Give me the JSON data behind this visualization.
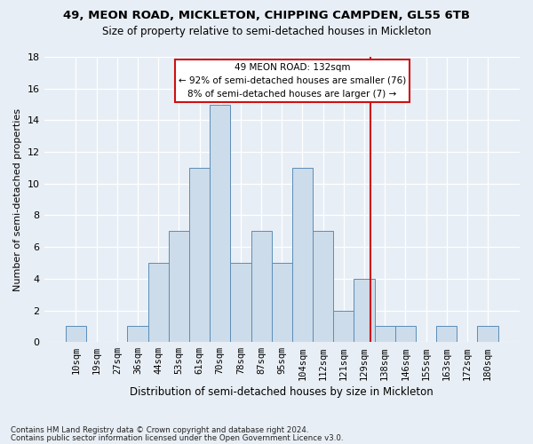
{
  "title1": "49, MEON ROAD, MICKLETON, CHIPPING CAMPDEN, GL55 6TB",
  "title2": "Size of property relative to semi-detached houses in Mickleton",
  "xlabel": "Distribution of semi-detached houses by size in Mickleton",
  "ylabel": "Number of semi-detached properties",
  "footer1": "Contains HM Land Registry data © Crown copyright and database right 2024.",
  "footer2": "Contains public sector information licensed under the Open Government Licence v3.0.",
  "bar_labels": [
    "10sqm",
    "19sqm",
    "27sqm",
    "36sqm",
    "44sqm",
    "53sqm",
    "61sqm",
    "70sqm",
    "78sqm",
    "87sqm",
    "95sqm",
    "104sqm",
    "112sqm",
    "121sqm",
    "129sqm",
    "138sqm",
    "146sqm",
    "155sqm",
    "163sqm",
    "172sqm",
    "180sqm"
  ],
  "bar_values": [
    1,
    0,
    0,
    1,
    5,
    7,
    11,
    15,
    5,
    7,
    5,
    11,
    7,
    2,
    4,
    1,
    1,
    0,
    1,
    0,
    1
  ],
  "bar_color": "#ccdcea",
  "bar_edge_color": "#5b8db8",
  "background_color": "#e8eef5",
  "grid_color": "#ffffff",
  "vline_x": 14.3,
  "vline_color": "#cc1111",
  "annotation_line1": "49 MEON ROAD: 132sqm",
  "annotation_line2": "← 92% of semi-detached houses are smaller (76)",
  "annotation_line3": "8% of semi-detached houses are larger (7) →",
  "annotation_box_facecolor": "#ffffff",
  "annotation_box_edgecolor": "#cc1111",
  "ylim": [
    0,
    18
  ],
  "yticks": [
    0,
    2,
    4,
    6,
    8,
    10,
    12,
    14,
    16,
    18
  ],
  "title1_fontsize": 9.5,
  "title2_fontsize": 8.5,
  "ylabel_fontsize": 8.0,
  "xlabel_fontsize": 8.5,
  "tick_fontsize": 7.5,
  "annotation_fontsize": 7.5,
  "footer_fontsize": 6.2
}
